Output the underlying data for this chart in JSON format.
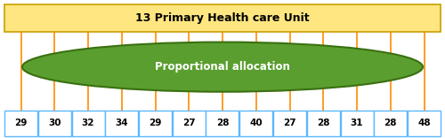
{
  "title": "13 Primary Health care Unit",
  "title_fontsize": 9,
  "ellipse_label": "Proportional allocation",
  "ellipse_label_fontsize": 8.5,
  "values": [
    29,
    30,
    32,
    34,
    29,
    27,
    28,
    40,
    27,
    28,
    31,
    28,
    48
  ],
  "top_box_color": "#FFE680",
  "top_box_edge_color": "#C8A000",
  "ellipse_facecolor": "#5A9E2F",
  "ellipse_edgecolor": "#3A7010",
  "line_color": "#FF8C00",
  "box_facecolor": "#FFFFFF",
  "box_edgecolor": "#5BB8FF",
  "value_fontsize": 7.5,
  "background_color": "#FFFFFF",
  "figsize": [
    5.0,
    1.56
  ],
  "dpi": 100
}
